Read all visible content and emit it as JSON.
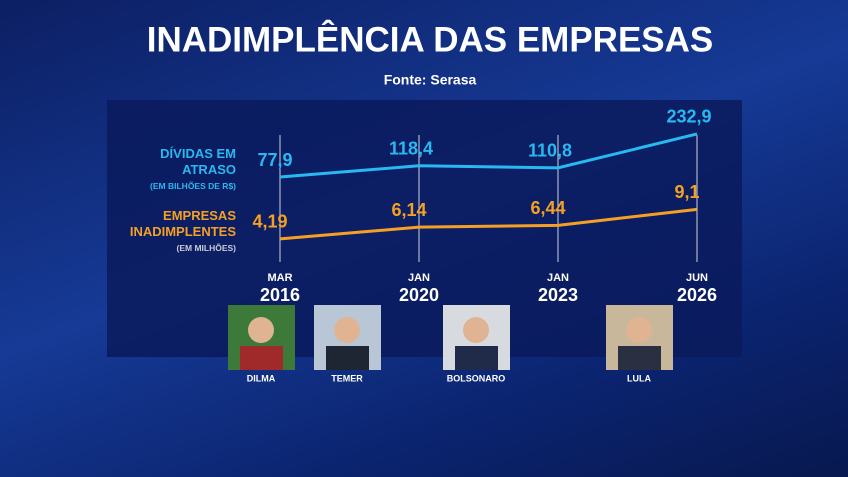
{
  "chart_data": {
    "type": "line",
    "title": "INADIMPLÊNCIA DAS EMPRESAS",
    "subtitle": "Fonte: Serasa",
    "x_months": [
      "MAR",
      "JAN",
      "JAN",
      "JUN"
    ],
    "x_years": [
      2016,
      2020,
      2023,
      2026
    ],
    "ylim": [
      60,
      240
    ],
    "y2lim": [
      2,
      10
    ],
    "series": [
      {
        "name": "DÍVIDAS EM ATRASO",
        "unit": "(EM BILHÕES DE R$)",
        "color": "#29b8f0",
        "values": [
          77.9,
          118.4,
          110.8,
          232.9
        ],
        "value_labels": [
          "77,9",
          "118,4",
          "110,8",
          "232,9"
        ]
      },
      {
        "name": "EMPRESAS INADIMPLENTES",
        "unit": "(EM MILHÕES)",
        "color": "#f4a024",
        "axis": "y2",
        "values": [
          4.19,
          6.14,
          6.44,
          9.1
        ],
        "value_labels": [
          "4,19",
          "6,14",
          "6,44",
          "9,1"
        ]
      }
    ]
  },
  "presidents": [
    {
      "name": "DILMA"
    },
    {
      "name": "TEMER"
    },
    {
      "name": "BOLSONARO"
    },
    {
      "name": "LULA"
    }
  ]
}
